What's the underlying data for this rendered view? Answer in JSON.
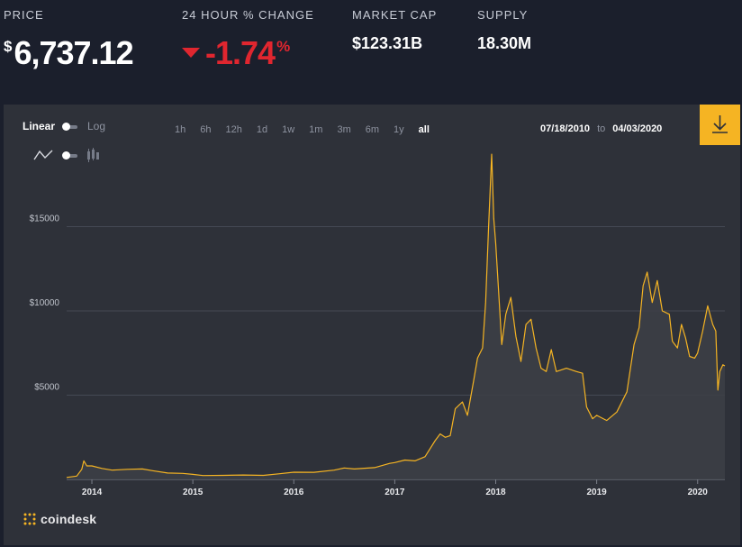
{
  "header": {
    "price_label": "PRICE",
    "price_symbol": "$",
    "price_value": "6,737.12",
    "change_label": "24 HOUR % CHANGE",
    "change_value": "-1.74",
    "change_unit": "%",
    "market_cap_label": "MARKET CAP",
    "market_cap_value": "$123.31B",
    "supply_label": "SUPPLY",
    "supply_value": "18.30M",
    "negative_color": "#e0262f"
  },
  "controls": {
    "scale_linear": "Linear",
    "scale_log": "Log",
    "ranges": [
      "1h",
      "6h",
      "12h",
      "1d",
      "1w",
      "1m",
      "3m",
      "6m",
      "1y",
      "all"
    ],
    "active_range": "all",
    "date_from": "07/18/2010",
    "date_to_word": "to",
    "date_to": "04/03/2020",
    "accent": "#f5b423"
  },
  "chart_data": {
    "type": "area",
    "line_color": "#f5b423",
    "grid": true,
    "yticks": [
      {
        "label": "$5000",
        "value": 5000
      },
      {
        "label": "$10000",
        "value": 10000
      },
      {
        "label": "$15000",
        "value": 15000
      }
    ],
    "ylim": [
      0,
      20000
    ],
    "xticks": [
      {
        "label": "2014",
        "value": 2014.0
      },
      {
        "label": "2015",
        "value": 2015.0
      },
      {
        "label": "2016",
        "value": 2016.0
      },
      {
        "label": "2017",
        "value": 2017.0
      },
      {
        "label": "2018",
        "value": 2018.0
      },
      {
        "label": "2019",
        "value": 2019.0
      },
      {
        "label": "2020",
        "value": 2020.0
      }
    ],
    "xlim": [
      2013.75,
      2020.27
    ],
    "points": [
      [
        2013.75,
        120
      ],
      [
        2013.85,
        200
      ],
      [
        2013.9,
        600
      ],
      [
        2013.92,
        1100
      ],
      [
        2013.95,
        800
      ],
      [
        2014.0,
        800
      ],
      [
        2014.1,
        650
      ],
      [
        2014.2,
        550
      ],
      [
        2014.35,
        600
      ],
      [
        2014.5,
        620
      ],
      [
        2014.6,
        520
      ],
      [
        2014.75,
        380
      ],
      [
        2014.9,
        360
      ],
      [
        2015.0,
        300
      ],
      [
        2015.1,
        230
      ],
      [
        2015.3,
        240
      ],
      [
        2015.5,
        260
      ],
      [
        2015.7,
        240
      ],
      [
        2015.85,
        330
      ],
      [
        2016.0,
        430
      ],
      [
        2016.2,
        420
      ],
      [
        2016.4,
        550
      ],
      [
        2016.5,
        680
      ],
      [
        2016.6,
        620
      ],
      [
        2016.8,
        700
      ],
      [
        2016.95,
        950
      ],
      [
        2017.0,
        1000
      ],
      [
        2017.1,
        1150
      ],
      [
        2017.2,
        1100
      ],
      [
        2017.3,
        1350
      ],
      [
        2017.4,
        2300
      ],
      [
        2017.45,
        2700
      ],
      [
        2017.5,
        2500
      ],
      [
        2017.55,
        2600
      ],
      [
        2017.6,
        4200
      ],
      [
        2017.67,
        4600
      ],
      [
        2017.72,
        3800
      ],
      [
        2017.78,
        5800
      ],
      [
        2017.82,
        7200
      ],
      [
        2017.87,
        7800
      ],
      [
        2017.9,
        10500
      ],
      [
        2017.93,
        15000
      ],
      [
        2017.96,
        19300
      ],
      [
        2017.98,
        15500
      ],
      [
        2018.0,
        14000
      ],
      [
        2018.03,
        11000
      ],
      [
        2018.06,
        8000
      ],
      [
        2018.1,
        9800
      ],
      [
        2018.15,
        10800
      ],
      [
        2018.2,
        8500
      ],
      [
        2018.25,
        7000
      ],
      [
        2018.3,
        9200
      ],
      [
        2018.35,
        9500
      ],
      [
        2018.4,
        7800
      ],
      [
        2018.45,
        6600
      ],
      [
        2018.5,
        6400
      ],
      [
        2018.55,
        7700
      ],
      [
        2018.6,
        6400
      ],
      [
        2018.7,
        6600
      ],
      [
        2018.8,
        6400
      ],
      [
        2018.86,
        6300
      ],
      [
        2018.9,
        4300
      ],
      [
        2018.96,
        3600
      ],
      [
        2019.0,
        3800
      ],
      [
        2019.1,
        3500
      ],
      [
        2019.2,
        4000
      ],
      [
        2019.3,
        5200
      ],
      [
        2019.37,
        8000
      ],
      [
        2019.42,
        9000
      ],
      [
        2019.46,
        11500
      ],
      [
        2019.5,
        12300
      ],
      [
        2019.55,
        10500
      ],
      [
        2019.6,
        11800
      ],
      [
        2019.65,
        10000
      ],
      [
        2019.72,
        9800
      ],
      [
        2019.75,
        8200
      ],
      [
        2019.8,
        7800
      ],
      [
        2019.84,
        9200
      ],
      [
        2019.88,
        8400
      ],
      [
        2019.92,
        7300
      ],
      [
        2019.97,
        7200
      ],
      [
        2020.0,
        7500
      ],
      [
        2020.05,
        8800
      ],
      [
        2020.1,
        10300
      ],
      [
        2020.15,
        9200
      ],
      [
        2020.18,
        8800
      ],
      [
        2020.2,
        5300
      ],
      [
        2020.22,
        6400
      ],
      [
        2020.25,
        6800
      ],
      [
        2020.27,
        6737
      ]
    ]
  },
  "brand": {
    "logo_text": "coindesk"
  }
}
